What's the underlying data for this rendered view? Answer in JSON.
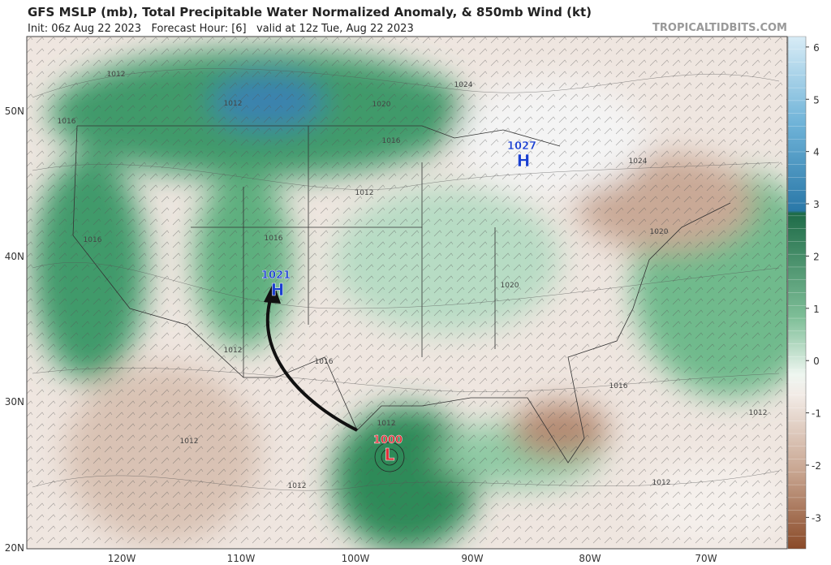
{
  "header": {
    "title": "GFS MSLP (mb), Total Precipitable Water Normalized Anomaly, & 850mb Wind (kt)",
    "subtitle": "Init: 06z Aug 22 2023   Forecast Hour: [6]   valid at 12z Tue, Aug 22 2023",
    "site": "TROPICALTIDBITS.COM"
  },
  "map": {
    "lat_labels": [
      "50N",
      "40N",
      "30N",
      "20N"
    ],
    "lon_labels": [
      "120W",
      "110W",
      "100W",
      "90W",
      "80W",
      "70W"
    ],
    "centers": [
      {
        "pressure": 1027,
        "letter": "H",
        "color": "#1a3fd0"
      },
      {
        "pressure": 1021,
        "letter": "H",
        "color": "#1a3fd0"
      },
      {
        "pressure": 1000,
        "letter": "L",
        "color": "#e0303a"
      }
    ],
    "isobar_labels": [
      1012,
      1012,
      1016,
      1020,
      1024,
      1016,
      1012,
      1016,
      1024,
      1020,
      1016,
      1020,
      1012,
      1016,
      1016,
      1012,
      1012,
      1012,
      1012,
      1012
    ]
  },
  "colorbar": {
    "range": [
      -3.6,
      6.2
    ],
    "ticks": [
      6,
      5,
      4,
      3,
      2,
      1,
      0,
      -1,
      -2,
      -3
    ]
  }
}
